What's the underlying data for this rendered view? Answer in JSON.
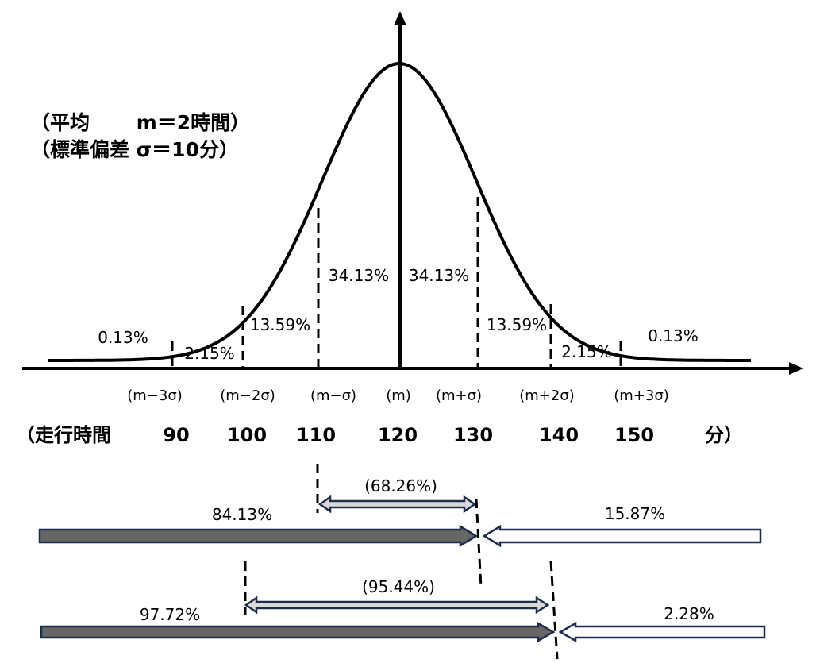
{
  "params": {
    "line1": "（平均　　 m＝2時間）",
    "line2": "（標準偏差 σ＝10分）"
  },
  "region_percentages": {
    "left_tail": "0.13%",
    "left_2_3": "2.15%",
    "left_1_2": "13.59%",
    "left_0_1": "34.13%",
    "right_0_1": "34.13%",
    "right_1_2": "13.59%",
    "right_2_3": "2.15%",
    "right_tail": "0.13%"
  },
  "sigma_labels": [
    "(m−3σ)",
    "(m−2σ)",
    "(m−σ)",
    "(m)",
    "(m+σ)",
    "(m+2σ)",
    "(m+3σ)"
  ],
  "time_axis": {
    "label_start": "（走行時間",
    "values": [
      "90",
      "100",
      "110",
      "120",
      "130",
      "140",
      "150"
    ],
    "label_end": "分）"
  },
  "ranges": {
    "one_sigma_range": "(68.26%)",
    "one_sigma_below": "84.13%",
    "one_sigma_above": "15.87%",
    "two_sigma_range": "(95.44%)",
    "two_sigma_below": "97.72%",
    "two_sigma_above": "2.28%"
  },
  "colors": {
    "curve": "#000000",
    "dark_arrow_fill": "#666666",
    "light_arrow_fill": "#d9d9d9",
    "arrow_stroke": "#1f2d4a"
  }
}
